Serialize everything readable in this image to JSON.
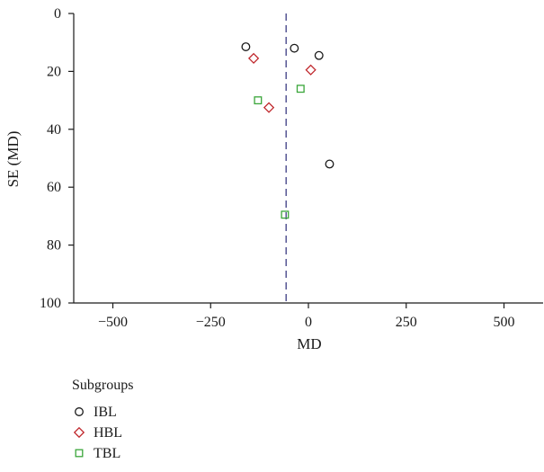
{
  "chart_data": {
    "type": "scatter",
    "title": "",
    "xlabel": "MD",
    "ylabel": "SE (MD)",
    "xlim": [
      -600,
      600
    ],
    "ylim": [
      0,
      100
    ],
    "y_inverted": true,
    "x_ticks": [
      -500,
      -250,
      0,
      250,
      500
    ],
    "x_tick_labels": [
      "−500",
      "−250",
      "0",
      "250",
      "500"
    ],
    "y_ticks": [
      0,
      20,
      40,
      60,
      80,
      100
    ],
    "y_tick_labels": [
      "0",
      "20",
      "40",
      "60",
      "80",
      "100"
    ],
    "grid": false,
    "reference_line": {
      "x": -57,
      "style": "dashed",
      "color": "#4a4a8c"
    },
    "legend": {
      "title": "Subgroups",
      "placement": "bottom-left"
    },
    "series": [
      {
        "name": "IBL",
        "marker": "circle",
        "color": "#1a1a1a",
        "points": [
          {
            "x": -160,
            "y": 11.5
          },
          {
            "x": -36,
            "y": 12
          },
          {
            "x": 27,
            "y": 14.5
          },
          {
            "x": 54,
            "y": 52
          }
        ]
      },
      {
        "name": "HBL",
        "marker": "diamond",
        "color": "#c0282d",
        "points": [
          {
            "x": -140,
            "y": 15.5
          },
          {
            "x": 6,
            "y": 19.5
          },
          {
            "x": -101,
            "y": 32.5
          }
        ]
      },
      {
        "name": "TBL",
        "marker": "square",
        "color": "#3aa63a",
        "points": [
          {
            "x": -20,
            "y": 26
          },
          {
            "x": -129,
            "y": 30
          },
          {
            "x": -60,
            "y": 69.5
          }
        ]
      }
    ]
  }
}
